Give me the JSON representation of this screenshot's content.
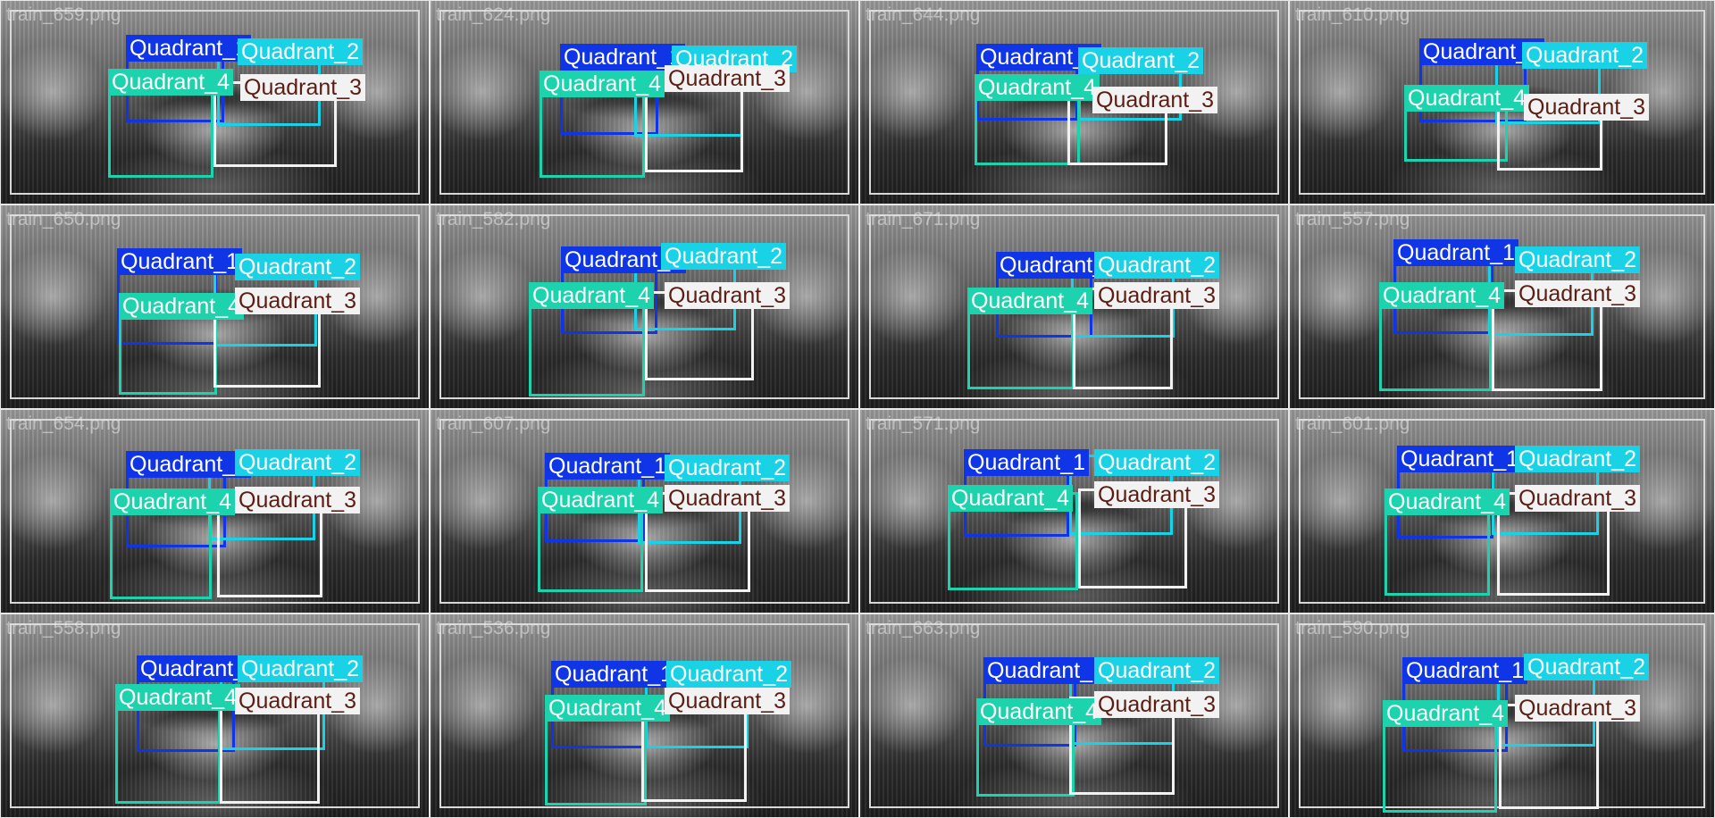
{
  "classes": [
    {
      "name": "Quadrant_1",
      "color": "#0f35e6",
      "text": "#ffffff"
    },
    {
      "name": "Quadrant_2",
      "color": "#19d2e6",
      "text": "#ffffff"
    },
    {
      "name": "Quadrant_3",
      "color": "#f2f2f2",
      "text": "#5a1e14"
    },
    {
      "name": "Quadrant_4",
      "color": "#1cd3ad",
      "text": "#ffffff"
    }
  ],
  "images": [
    {
      "filename": "train_659.png"
    },
    {
      "filename": "train_624.png"
    },
    {
      "filename": "train_644.png"
    },
    {
      "filename": "train_610.png"
    },
    {
      "filename": "train_650.png"
    },
    {
      "filename": "train_582.png"
    },
    {
      "filename": "train_671.png"
    },
    {
      "filename": "train_557.png"
    },
    {
      "filename": "train_654.png"
    },
    {
      "filename": "train_607.png"
    },
    {
      "filename": "train_571.png"
    },
    {
      "filename": "train_601.png"
    },
    {
      "filename": "train_558.png"
    },
    {
      "filename": "train_536.png"
    },
    {
      "filename": "train_663.png"
    },
    {
      "filename": "train_590.png"
    }
  ]
}
